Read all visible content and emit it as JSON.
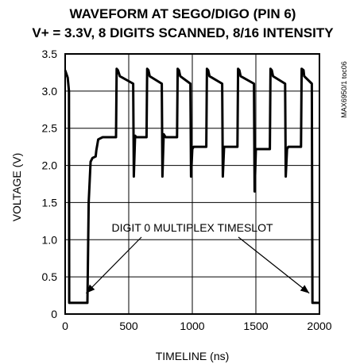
{
  "chart_data": {
    "type": "line",
    "title_line1": "WAVEFORM AT SEGO/DIGO (PIN 6)",
    "title_line2": "V+ = 3.3V, 8 DIGITS SCANNED, 8/16 INTENSITY",
    "xlabel": "TIMELINE (ns)",
    "ylabel": "VOLTAGE (V)",
    "xlim": [
      0,
      2000
    ],
    "ylim": [
      0,
      3.5
    ],
    "xticks": [
      0,
      500,
      1000,
      1500,
      2000
    ],
    "yticks": [
      0,
      0.5,
      1.0,
      1.5,
      2.0,
      2.5,
      3.0,
      3.5
    ],
    "xtick_labels": [
      "0",
      "500",
      "1000",
      "1500",
      "2000"
    ],
    "ytick_labels": [
      "0",
      "0.5",
      "1.0",
      "1.5",
      "2.0",
      "2.5",
      "3.0",
      "3.5"
    ],
    "grid": true,
    "annotation": "DIGIT 0 MULTIPLEX TIMESLOT",
    "figure_code": "MAX6950/1 toc06",
    "x": [
      0,
      20,
      30,
      32,
      175,
      185,
      200,
      215,
      240,
      245,
      260,
      295,
      400,
      405,
      415,
      430,
      535,
      540,
      550,
      560,
      640,
      645,
      655,
      665,
      760,
      765,
      775,
      790,
      880,
      885,
      895,
      905,
      985,
      990,
      1000,
      1010,
      1110,
      1115,
      1125,
      1135,
      1235,
      1240,
      1250,
      1260,
      1355,
      1360,
      1370,
      1380,
      1485,
      1490,
      1500,
      1510,
      1610,
      1615,
      1625,
      1635,
      1730,
      1735,
      1745,
      1755,
      1855,
      1860,
      1875,
      1880,
      1940,
      1945,
      1960,
      2000
    ],
    "y": [
      3.28,
      3.18,
      3.0,
      0.15,
      0.15,
      1.5,
      2.05,
      2.1,
      2.12,
      2.2,
      2.35,
      2.38,
      2.38,
      3.3,
      3.28,
      3.2,
      3.1,
      1.85,
      2.4,
      2.38,
      2.38,
      3.3,
      3.28,
      3.2,
      3.1,
      1.85,
      2.42,
      2.38,
      2.38,
      3.3,
      3.28,
      3.2,
      3.1,
      1.85,
      2.22,
      2.25,
      2.25,
      3.3,
      3.28,
      3.2,
      3.1,
      1.85,
      2.25,
      2.25,
      2.25,
      3.3,
      3.28,
      3.2,
      3.1,
      1.65,
      2.22,
      2.22,
      2.22,
      3.3,
      3.28,
      3.2,
      3.1,
      1.85,
      2.22,
      2.25,
      2.25,
      3.3,
      3.28,
      3.2,
      3.1,
      0.15,
      0.15,
      0.15
    ]
  }
}
